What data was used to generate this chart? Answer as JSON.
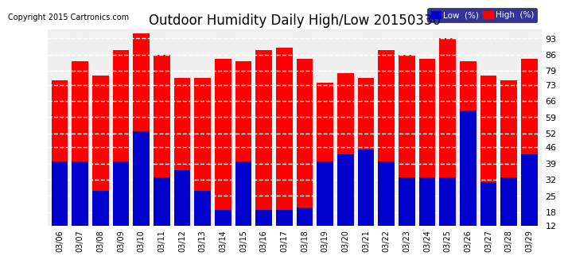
{
  "title": "Outdoor Humidity Daily High/Low 20150330",
  "copyright": "Copyright 2015 Cartronics.com",
  "dates": [
    "03/06",
    "03/07",
    "03/08",
    "03/09",
    "03/10",
    "03/11",
    "03/12",
    "03/13",
    "03/14",
    "03/15",
    "03/16",
    "03/17",
    "03/18",
    "03/19",
    "03/20",
    "03/21",
    "03/22",
    "03/23",
    "03/24",
    "03/25",
    "03/26",
    "03/27",
    "03/28",
    "03/29"
  ],
  "high": [
    75,
    83,
    77,
    88,
    95,
    86,
    76,
    76,
    84,
    83,
    88,
    89,
    84,
    74,
    78,
    76,
    88,
    86,
    84,
    93,
    83,
    77,
    75,
    84
  ],
  "low": [
    40,
    40,
    27,
    40,
    53,
    33,
    36,
    27,
    19,
    40,
    19,
    19,
    20,
    40,
    43,
    45,
    40,
    33,
    33,
    33,
    62,
    31,
    33,
    43
  ],
  "high_color": "#ff0000",
  "low_color": "#0000cc",
  "bg_color": "#ffffff",
  "plot_bg_color": "#f0f0f0",
  "grid_color": "#ffffff",
  "ymin": 12,
  "ymax": 95,
  "yticks": [
    12,
    18,
    25,
    32,
    39,
    46,
    52,
    59,
    66,
    73,
    79,
    86,
    93
  ],
  "title_fontsize": 12,
  "copyright_fontsize": 7,
  "bar_width": 0.8
}
